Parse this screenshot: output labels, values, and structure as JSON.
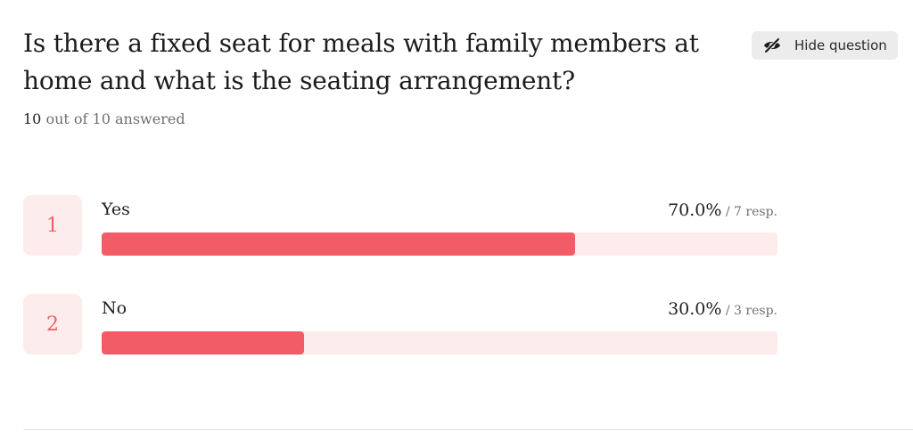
{
  "question": {
    "title": "Is there a fixed seat for meals with family members at home and what is the seating arrangement?",
    "answered_count": "10",
    "answered_rest": " out of 10 answered",
    "hide_button_label": "Hide question",
    "hide_button_icon": "eye-slash-icon"
  },
  "options": [
    {
      "number": "1",
      "label": "Yes",
      "percent_text": "70.0%",
      "responses_text": " / 7 resp.",
      "fraction": 0.7
    },
    {
      "number": "2",
      "label": "No",
      "percent_text": "30.0%",
      "responses_text": " / 3 resp.",
      "fraction": 0.3
    }
  ],
  "colors": {
    "accent": "#f25c67",
    "accent_light": "#fdecec",
    "button_bg": "#ececec"
  }
}
